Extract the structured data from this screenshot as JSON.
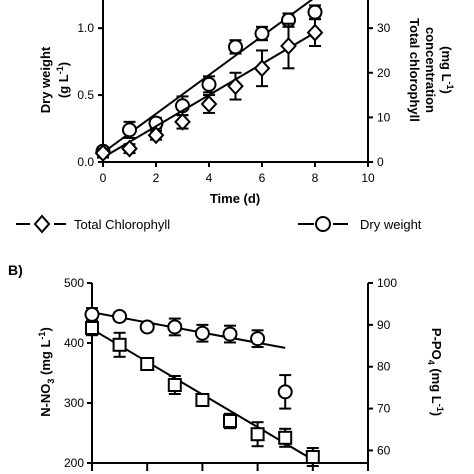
{
  "chart_data": [
    {
      "panel_label": "",
      "type": "scatter",
      "xlabel": "Time (d)",
      "x_ticks": [
        "0",
        "2",
        "4",
        "6",
        "8",
        "10"
      ],
      "xlim": [
        0,
        10
      ],
      "ylabel_left": [
        "Dry weight",
        "(g L",
        "-1",
        ")"
      ],
      "yticks_left": [
        "0.0",
        "0.5",
        "1.0"
      ],
      "ylim_left": [
        0,
        1.3
      ],
      "ylabel_right": [
        "Total chlorophyll",
        "concentration",
        "(mg L",
        "-1",
        ")"
      ],
      "yticks_right": [
        "0",
        "10",
        "20",
        "30"
      ],
      "ylim_right": [
        0,
        39
      ],
      "series": [
        {
          "name": "Dry weight",
          "axis": "left",
          "marker": "circle",
          "x": [
            0,
            1,
            2,
            3,
            4,
            5,
            6,
            7,
            8
          ],
          "y": [
            0.08,
            0.24,
            0.29,
            0.42,
            0.58,
            0.86,
            0.96,
            1.06,
            1.12
          ],
          "err": [
            0.03,
            0.06,
            0.04,
            0.07,
            0.06,
            0.05,
            0.05,
            0.05,
            0.05
          ],
          "fit": [
            0,
            0.07,
            8,
            1.23
          ]
        },
        {
          "name": "Total Chlorophyll",
          "axis": "right",
          "marker": "diamond",
          "x": [
            0,
            1,
            2,
            3,
            4,
            5,
            6,
            7,
            8
          ],
          "y": [
            2,
            3,
            6,
            9,
            13,
            17,
            21,
            26,
            29
          ],
          "err": [
            1,
            1,
            1,
            1.5,
            2,
            3,
            4,
            5,
            3
          ],
          "fit": [
            0,
            1,
            8,
            29
          ]
        }
      ],
      "legend": [
        "Total Chlorophyll",
        "Dry weight"
      ],
      "legend_placement": "bottom"
    },
    {
      "panel_label": "B)",
      "type": "scatter",
      "xlabel": "",
      "ylabel_left": [
        "N-NO",
        "3",
        " (mg L",
        "-1",
        ")"
      ],
      "yticks_left": [
        "200",
        "300",
        "400",
        "500"
      ],
      "ylim_left": [
        200,
        500
      ],
      "ylabel_right": [
        "P-PO",
        "4",
        " (mg L",
        "-1",
        ")"
      ],
      "yticks_right": [
        "60",
        "70",
        "80",
        "90",
        "100"
      ],
      "ylim_right": [
        57,
        100
      ],
      "series": [
        {
          "name": "N-NO3",
          "axis": "left",
          "marker": "square",
          "x": [
            0,
            1,
            2,
            3,
            4,
            5,
            6,
            7,
            8
          ],
          "y": [
            425,
            397,
            365,
            330,
            305,
            270,
            248,
            242,
            210
          ],
          "err": [
            12,
            20,
            5,
            15,
            5,
            12,
            20,
            15,
            15
          ],
          "fit": [
            0,
            423,
            8.2,
            200
          ]
        },
        {
          "name": "P-PO4",
          "axis": "right",
          "marker": "circle",
          "x": [
            0,
            1,
            2,
            3,
            4,
            5,
            6,
            7
          ],
          "y": [
            92.5,
            92,
            89.5,
            89.5,
            88,
            87.8,
            86.7,
            74
          ],
          "err": [
            1.5,
            1,
            1,
            2,
            2,
            2,
            2,
            4
          ],
          "fit": [
            0,
            93,
            7,
            84.5
          ]
        }
      ]
    }
  ]
}
